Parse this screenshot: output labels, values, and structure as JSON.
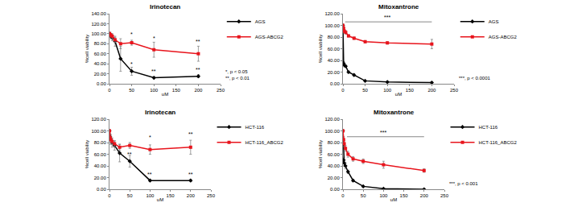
{
  "chart_data": [
    {
      "type": "line",
      "title": "Irinotecan",
      "x_label": "uM",
      "y_label": "%cell viability",
      "x": [
        0,
        1.56,
        3.125,
        6.25,
        12.5,
        25,
        50,
        100,
        200
      ],
      "series": [
        {
          "name": "AGS",
          "color": "#000000",
          "marker": "diamond",
          "values": [
            100,
            98,
            95,
            92,
            85,
            50,
            25,
            12,
            15
          ],
          "errors": [
            0,
            5,
            5,
            6,
            10,
            25,
            8,
            2,
            3
          ]
        },
        {
          "name": "AGS-ABCG2",
          "color": "#e8141c",
          "marker": "square",
          "values": [
            100,
            98,
            97,
            95,
            88,
            80,
            82,
            68,
            60
          ],
          "errors": [
            0,
            3,
            3,
            5,
            5,
            10,
            5,
            15,
            15
          ]
        }
      ],
      "xlim": [
        0,
        250
      ],
      "xticks": [
        0,
        50,
        100,
        150,
        200,
        250
      ],
      "ylim": [
        0,
        140
      ],
      "yticks": [
        {
          "value": 0,
          "label": "0.00"
        },
        {
          "value": 20,
          "label": "20.00"
        },
        {
          "value": 40,
          "label": "40.00"
        },
        {
          "value": 60,
          "label": "60.00"
        },
        {
          "value": 80,
          "label": "80.00"
        },
        {
          "value": 100,
          "label": "100.00"
        },
        {
          "value": 120,
          "label": "120.00"
        },
        {
          "value": 140,
          "label": "140.00"
        }
      ],
      "annotations": [
        {
          "text": "*",
          "x": 50,
          "y": 90
        },
        {
          "text": "*",
          "x": 50,
          "y": 30
        },
        {
          "text": "*",
          "x": 100,
          "y": 82
        },
        {
          "text": "**",
          "x": 100,
          "y": 16
        },
        {
          "text": "**",
          "x": 200,
          "y": 76
        },
        {
          "text": "**",
          "x": 200,
          "y": 19
        }
      ],
      "footnote": [
        "*, p < 0.05",
        "**, p < 0.01"
      ],
      "legend": "right",
      "grid": false
    },
    {
      "type": "line",
      "title": "Mitoxantrone",
      "x_label": "uM",
      "y_label": "%cell viability",
      "x": [
        0,
        1.56,
        3.125,
        6.25,
        12.5,
        25,
        50,
        100,
        200
      ],
      "series": [
        {
          "name": "AGS",
          "color": "#000000",
          "marker": "diamond",
          "values": [
            100,
            35,
            32,
            30,
            20,
            15,
            5,
            3,
            2
          ],
          "errors": [
            0,
            3,
            3,
            2,
            2,
            2,
            1,
            1,
            1
          ]
        },
        {
          "name": "AGS-ABCG2",
          "color": "#e8141c",
          "marker": "square",
          "values": [
            100,
            95,
            90,
            88,
            82,
            78,
            72,
            70,
            68
          ],
          "errors": [
            0,
            3,
            3,
            3,
            2,
            2,
            2,
            2,
            8
          ]
        }
      ],
      "xlim": [
        0,
        250
      ],
      "xticks": [
        0,
        50,
        100,
        150,
        200,
        250
      ],
      "ylim": [
        0,
        120
      ],
      "yticks": [
        {
          "value": 0,
          "label": "0.00"
        },
        {
          "value": 20,
          "label": "20.00"
        },
        {
          "value": 40,
          "label": "40.00"
        },
        {
          "value": 60,
          "label": "60.00"
        },
        {
          "value": 80,
          "label": "80.00"
        },
        {
          "value": 100,
          "label": "100.00"
        },
        {
          "value": 120,
          "label": "120.00"
        }
      ],
      "annotations": [
        {
          "text": "***",
          "x": 100,
          "y": 106,
          "span": [
            5,
            200
          ]
        }
      ],
      "footnote": [
        "***, p < 0.0001"
      ],
      "legend": "right",
      "grid": false
    },
    {
      "type": "line",
      "title": "Irinotecan",
      "x_label": "uM",
      "y_label": "%cell viability",
      "x": [
        0,
        1.56,
        3.125,
        6.25,
        12.5,
        25,
        50,
        100,
        200
      ],
      "series": [
        {
          "name": "HCT-116",
          "color": "#000000",
          "marker": "diamond",
          "values": [
            100,
            90,
            85,
            80,
            75,
            62,
            48,
            15,
            15
          ],
          "errors": [
            0,
            5,
            8,
            8,
            8,
            15,
            10,
            2,
            2
          ]
        },
        {
          "name": "HCT-116_ABCG2",
          "color": "#e8141c",
          "marker": "square",
          "values": [
            100,
            88,
            85,
            82,
            78,
            72,
            75,
            68,
            72
          ],
          "errors": [
            0,
            5,
            5,
            5,
            5,
            5,
            5,
            8,
            12
          ]
        }
      ],
      "xlim": [
        0,
        250
      ],
      "xticks": [
        0,
        50,
        100,
        150,
        200,
        250
      ],
      "ylim": [
        0,
        120
      ],
      "yticks": [
        {
          "value": 0,
          "label": "0.00"
        },
        {
          "value": 20,
          "label": "20.00"
        },
        {
          "value": 40,
          "label": "40.00"
        },
        {
          "value": 60,
          "label": "60.00"
        },
        {
          "value": 80,
          "label": "80.00"
        },
        {
          "value": 100,
          "label": "100.00"
        },
        {
          "value": 120,
          "label": "120.00"
        }
      ],
      "annotations": [
        {
          "text": "**",
          "x": 50,
          "y": 52
        },
        {
          "text": "*",
          "x": 100,
          "y": 82
        },
        {
          "text": "**",
          "x": 100,
          "y": 18
        },
        {
          "text": "**",
          "x": 200,
          "y": 87
        },
        {
          "text": "**",
          "x": 200,
          "y": 18
        }
      ],
      "legend": "right",
      "grid": false
    },
    {
      "type": "line",
      "title": "Mitoxantrone",
      "x_label": "uM",
      "y_label": "%cell viability",
      "x": [
        0,
        1.56,
        3.125,
        6.25,
        12.5,
        25,
        50,
        100,
        200
      ],
      "series": [
        {
          "name": "HCT-116",
          "color": "#000000",
          "marker": "diamond",
          "values": [
            100,
            50,
            45,
            40,
            30,
            15,
            5,
            1,
            0
          ],
          "errors": [
            0,
            5,
            5,
            5,
            3,
            2,
            1,
            1,
            0
          ]
        },
        {
          "name": "HCT-116_ABCG2",
          "color": "#e8141c",
          "marker": "square",
          "values": [
            100,
            85,
            78,
            70,
            60,
            52,
            48,
            42,
            32
          ],
          "errors": [
            0,
            5,
            5,
            5,
            5,
            4,
            4,
            6,
            3
          ]
        }
      ],
      "xlim": [
        0,
        250
      ],
      "xticks": [
        0,
        50,
        100,
        150,
        200,
        250
      ],
      "ylim": [
        0,
        120
      ],
      "yticks": [
        {
          "value": 0,
          "label": "0.00"
        },
        {
          "value": 20,
          "label": "20.00"
        },
        {
          "value": 40,
          "label": "40.00"
        },
        {
          "value": 60,
          "label": "60.00"
        },
        {
          "value": 80,
          "label": "80.00"
        },
        {
          "value": 100,
          "label": "100.00"
        },
        {
          "value": 120,
          "label": "120.00"
        }
      ],
      "annotations": [
        {
          "text": "***",
          "x": 100,
          "y": 90,
          "span": [
            10,
            200
          ]
        }
      ],
      "footnote": [
        "***, p < 0.001"
      ],
      "legend": "right",
      "grid": false
    }
  ]
}
